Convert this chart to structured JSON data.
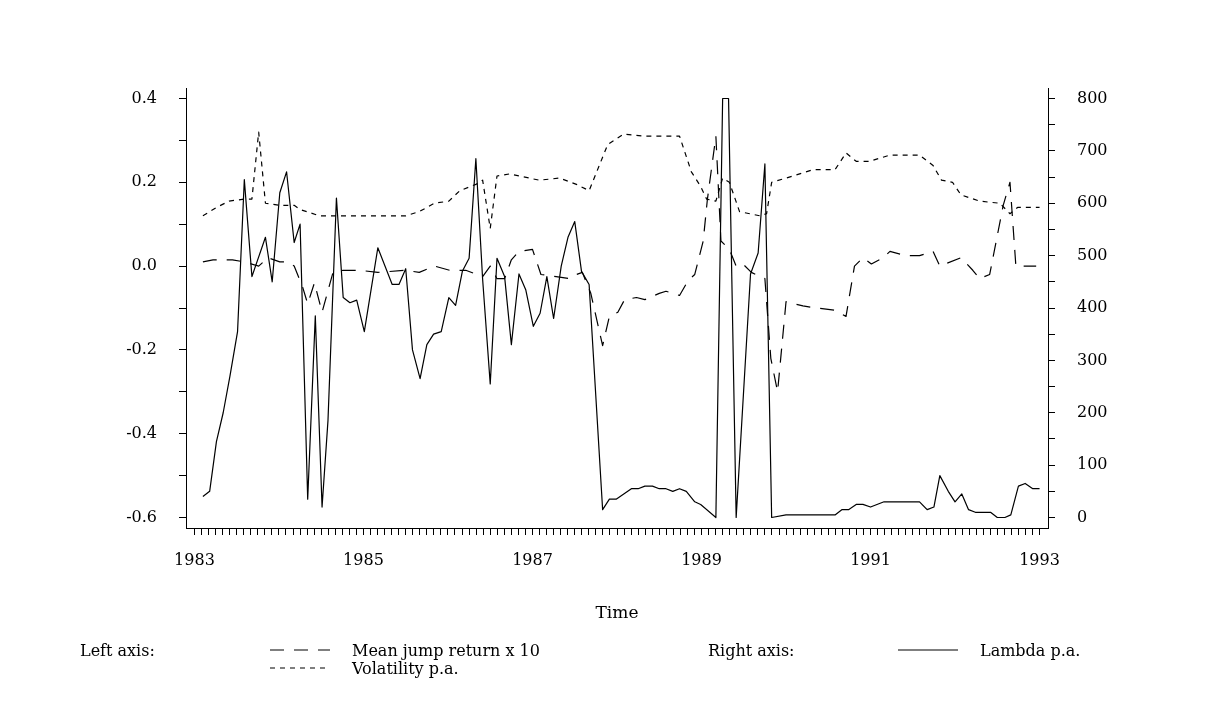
{
  "chart_data": {
    "type": "line",
    "xlabel": "Time",
    "legend": "bottom",
    "annotations": [
      "Left axis:",
      "Right axis:"
    ],
    "xlim": [
      1982.9,
      1993.1
    ],
    "xticks": [
      1983,
      {
        "value": 1983.083,
        "label": null
      },
      {
        "value": 1983.167,
        "label": null
      },
      {
        "value": 1983.25,
        "label": null
      },
      {
        "value": 1983.333,
        "label": null
      },
      {
        "value": 1983.417,
        "label": null
      },
      {
        "value": 1983.5,
        "label": null
      },
      {
        "value": 1983.583,
        "label": null
      },
      {
        "value": 1983.667,
        "label": null
      },
      {
        "value": 1983.75,
        "label": null
      },
      {
        "value": 1983.833,
        "label": null
      },
      {
        "value": 1983.917,
        "label": null
      },
      {
        "value": 1984,
        "label": null
      },
      {
        "value": 1984.083,
        "label": null
      },
      {
        "value": 1984.167,
        "label": null
      },
      {
        "value": 1984.25,
        "label": null
      },
      {
        "value": 1984.333,
        "label": null
      },
      {
        "value": 1984.417,
        "label": null
      },
      {
        "value": 1984.5,
        "label": null
      },
      {
        "value": 1984.583,
        "label": null
      },
      {
        "value": 1984.667,
        "label": null
      },
      {
        "value": 1984.75,
        "label": null
      },
      {
        "value": 1984.833,
        "label": null
      },
      {
        "value": 1984.917,
        "label": null
      },
      1985,
      {
        "value": 1985.083,
        "label": null
      },
      {
        "value": 1985.167,
        "label": null
      },
      {
        "value": 1985.25,
        "label": null
      },
      {
        "value": 1985.333,
        "label": null
      },
      {
        "value": 1985.417,
        "label": null
      },
      {
        "value": 1985.5,
        "label": null
      },
      {
        "value": 1985.583,
        "label": null
      },
      {
        "value": 1985.667,
        "label": null
      },
      {
        "value": 1985.75,
        "label": null
      },
      {
        "value": 1985.833,
        "label": null
      },
      {
        "value": 1985.917,
        "label": null
      },
      {
        "value": 1986,
        "label": null
      },
      {
        "value": 1986.083,
        "label": null
      },
      {
        "value": 1986.167,
        "label": null
      },
      {
        "value": 1986.25,
        "label": null
      },
      {
        "value": 1986.333,
        "label": null
      },
      {
        "value": 1986.417,
        "label": null
      },
      {
        "value": 1986.5,
        "label": null
      },
      {
        "value": 1986.583,
        "label": null
      },
      {
        "value": 1986.667,
        "label": null
      },
      {
        "value": 1986.75,
        "label": null
      },
      {
        "value": 1986.833,
        "label": null
      },
      {
        "value": 1986.917,
        "label": null
      },
      1987,
      {
        "value": 1987.083,
        "label": null
      },
      {
        "value": 1987.167,
        "label": null
      },
      {
        "value": 1987.25,
        "label": null
      },
      {
        "value": 1987.333,
        "label": null
      },
      {
        "value": 1987.417,
        "label": null
      },
      {
        "value": 1987.5,
        "label": null
      },
      {
        "value": 1987.583,
        "label": null
      },
      {
        "value": 1987.667,
        "label": null
      },
      {
        "value": 1987.75,
        "label": null
      },
      {
        "value": 1987.833,
        "label": null
      },
      {
        "value": 1987.917,
        "label": null
      },
      {
        "value": 1988,
        "label": null
      },
      {
        "value": 1988.083,
        "label": null
      },
      {
        "value": 1988.167,
        "label": null
      },
      {
        "value": 1988.25,
        "label": null
      },
      {
        "value": 1988.333,
        "label": null
      },
      {
        "value": 1988.417,
        "label": null
      },
      {
        "value": 1988.5,
        "label": null
      },
      {
        "value": 1988.583,
        "label": null
      },
      {
        "value": 1988.667,
        "label": null
      },
      {
        "value": 1988.75,
        "label": null
      },
      {
        "value": 1988.833,
        "label": null
      },
      {
        "value": 1988.917,
        "label": null
      },
      1989,
      {
        "value": 1989.083,
        "label": null
      },
      {
        "value": 1989.167,
        "label": null
      },
      {
        "value": 1989.25,
        "label": null
      },
      {
        "value": 1989.333,
        "label": null
      },
      {
        "value": 1989.417,
        "label": null
      },
      {
        "value": 1989.5,
        "label": null
      },
      {
        "value": 1989.583,
        "label": null
      },
      {
        "value": 1989.667,
        "label": null
      },
      {
        "value": 1989.75,
        "label": null
      },
      {
        "value": 1989.833,
        "label": null
      },
      {
        "value": 1989.917,
        "label": null
      },
      {
        "value": 1990,
        "label": null
      },
      {
        "value": 1990.083,
        "label": null
      },
      {
        "value": 1990.167,
        "label": null
      },
      {
        "value": 1990.25,
        "label": null
      },
      {
        "value": 1990.333,
        "label": null
      },
      {
        "value": 1990.417,
        "label": null
      },
      {
        "value": 1990.5,
        "label": null
      },
      {
        "value": 1990.583,
        "label": null
      },
      {
        "value": 1990.667,
        "label": null
      },
      {
        "value": 1990.75,
        "label": null
      },
      {
        "value": 1990.833,
        "label": null
      },
      {
        "value": 1990.917,
        "label": null
      },
      1991,
      {
        "value": 1991.083,
        "label": null
      },
      {
        "value": 1991.167,
        "label": null
      },
      {
        "value": 1991.25,
        "label": null
      },
      {
        "value": 1991.333,
        "label": null
      },
      {
        "value": 1991.417,
        "label": null
      },
      {
        "value": 1991.5,
        "label": null
      },
      {
        "value": 1991.583,
        "label": null
      },
      {
        "value": 1991.667,
        "label": null
      },
      {
        "value": 1991.75,
        "label": null
      },
      {
        "value": 1991.833,
        "label": null
      },
      {
        "value": 1991.917,
        "label": null
      },
      {
        "value": 1992,
        "label": null
      },
      {
        "value": 1992.083,
        "label": null
      },
      {
        "value": 1992.167,
        "label": null
      },
      {
        "value": 1992.25,
        "label": null
      },
      {
        "value": 1992.333,
        "label": null
      },
      {
        "value": 1992.417,
        "label": null
      },
      {
        "value": 1992.5,
        "label": null
      },
      {
        "value": 1992.583,
        "label": null
      },
      {
        "value": 1992.667,
        "label": null
      },
      {
        "value": 1992.75,
        "label": null
      },
      {
        "value": 1992.833,
        "label": null
      },
      {
        "value": 1992.917,
        "label": null
      },
      1993
    ],
    "ylim": [
      -0.625,
      0.425
    ],
    "yticks": [
      -0.6,
      {
        "value": -0.5,
        "label": null
      },
      -0.4,
      {
        "value": -0.3,
        "label": null
      },
      -0.2,
      {
        "value": -0.1,
        "label": null
      },
      {
        "value": 0,
        "label": "0.0"
      },
      {
        "value": 0.1,
        "label": null
      },
      0.2,
      {
        "value": 0.3,
        "label": null
      },
      0.4
    ],
    "y2lim": [
      -20,
      820
    ],
    "y2ticks": [
      0,
      {
        "value": 50,
        "label": null
      },
      100,
      {
        "value": 150,
        "label": null
      },
      200,
      {
        "value": 250,
        "label": null
      },
      300,
      {
        "value": 350,
        "label": null
      },
      400,
      {
        "value": 450,
        "label": null
      },
      500,
      {
        "value": 550,
        "label": null
      },
      600,
      {
        "value": 650,
        "label": null
      },
      700,
      {
        "value": 750,
        "label": null
      },
      800
    ],
    "series": [
      {
        "name": "Mean jump return x 10",
        "color": "#000000",
        "line_style": "dashed",
        "x": [
          1983.1,
          1983.22,
          1983.45,
          1983.59,
          1983.76,
          1983.87,
          1984.01,
          1984.1,
          1984.18,
          1984.28,
          1984.34,
          1984.42,
          1984.51,
          1984.64,
          1984.76,
          1984.95,
          1985.17,
          1985.5,
          1985.66,
          1985.84,
          1986.02,
          1986.21,
          1986.41,
          1986.5,
          1986.58,
          1986.67,
          1986.75,
          1986.84,
          1987.0,
          1987.1,
          1987.28,
          1987.44,
          1987.52,
          1987.59,
          1987.69,
          1987.83,
          1987.91,
          1988.01,
          1988.09,
          1988.23,
          1988.33,
          1988.5,
          1988.58,
          1988.74,
          1988.84,
          1988.92,
          1989.02,
          1989.07,
          1989.17,
          1989.23,
          1989.33,
          1989.41,
          1989.49,
          1989.59,
          1989.75,
          1989.82,
          1989.9,
          1990.0,
          1990.2,
          1990.36,
          1990.57,
          1990.71,
          1990.81,
          1990.91,
          1991.01,
          1991.15,
          1991.23,
          1991.42,
          1991.58,
          1991.74,
          1991.82,
          1992.07,
          1992.21,
          1992.29,
          1992.41,
          1992.57,
          1992.65,
          1992.72,
          1992.96
        ],
        "values": [
          0.01,
          0.015,
          0.015,
          0.01,
          0.0,
          0.02,
          0.01,
          0.01,
          0.0,
          -0.05,
          -0.09,
          -0.04,
          -0.11,
          -0.015,
          -0.01,
          -0.01,
          -0.015,
          -0.01,
          -0.015,
          0.0,
          -0.01,
          -0.01,
          -0.025,
          0.0,
          -0.03,
          -0.03,
          0.015,
          0.035,
          0.04,
          -0.02,
          -0.025,
          -0.03,
          -0.02,
          -0.015,
          -0.065,
          -0.19,
          -0.12,
          -0.11,
          -0.08,
          -0.075,
          -0.08,
          -0.065,
          -0.06,
          -0.07,
          -0.035,
          -0.02,
          0.06,
          0.16,
          0.31,
          0.06,
          0.04,
          0.0,
          0.005,
          -0.015,
          -0.03,
          -0.22,
          -0.3,
          -0.085,
          -0.095,
          -0.1,
          -0.105,
          -0.12,
          0.0,
          0.02,
          0.005,
          0.02,
          0.035,
          0.025,
          0.025,
          0.035,
          0.0,
          0.02,
          -0.01,
          -0.03,
          -0.02,
          0.145,
          0.2,
          0.0,
          0.0
        ]
      },
      {
        "name": "Volatility p.a.",
        "color": "#000000",
        "line_style": "dotted",
        "x": [
          1983.1,
          1983.18,
          1983.26,
          1983.41,
          1983.59,
          1983.68,
          1983.76,
          1983.84,
          1984.01,
          1984.18,
          1984.25,
          1984.48,
          1984.68,
          1984.91,
          1985.19,
          1985.5,
          1985.66,
          1985.84,
          1986.01,
          1986.14,
          1986.33,
          1986.41,
          1986.5,
          1986.58,
          1986.73,
          1987.08,
          1987.32,
          1987.52,
          1987.67,
          1987.89,
          1988.08,
          1988.33,
          1988.74,
          1988.88,
          1988.99,
          1989.06,
          1989.17,
          1989.25,
          1989.33,
          1989.45,
          1989.69,
          1989.77,
          1989.83,
          1990.0,
          1990.32,
          1990.58,
          1990.71,
          1990.83,
          1990.99,
          1991.23,
          1991.58,
          1991.74,
          1991.84,
          1991.97,
          1992.07,
          1992.29,
          1992.53,
          1992.65,
          1992.74,
          1992.84,
          1993.0
        ],
        "values": [
          0.12,
          0.13,
          0.14,
          0.155,
          0.16,
          0.16,
          0.32,
          0.15,
          0.145,
          0.145,
          0.135,
          0.12,
          0.12,
          0.12,
          0.12,
          0.12,
          0.13,
          0.15,
          0.155,
          0.18,
          0.195,
          0.205,
          0.09,
          0.215,
          0.22,
          0.205,
          0.21,
          0.195,
          0.18,
          0.29,
          0.315,
          0.31,
          0.31,
          0.225,
          0.19,
          0.16,
          0.155,
          0.21,
          0.2,
          0.13,
          0.12,
          0.125,
          0.2,
          0.21,
          0.23,
          0.23,
          0.27,
          0.25,
          0.25,
          0.265,
          0.265,
          0.24,
          0.205,
          0.2,
          0.17,
          0.155,
          0.15,
          0.125,
          0.14,
          0.14,
          0.14
        ]
      },
      {
        "name": "Lambda p.a.",
        "color": "#000000",
        "line_style": "solid",
        "axis": "y2",
        "x": [
          1983.1,
          1983.18,
          1983.26,
          1983.34,
          1983.42,
          1983.51,
          1983.59,
          1983.68,
          1983.84,
          1983.92,
          1984.01,
          1984.09,
          1984.18,
          1984.25,
          1984.34,
          1984.43,
          1984.51,
          1984.58,
          1984.68,
          1984.76,
          1984.84,
          1984.92,
          1985.01,
          1985.17,
          1985.34,
          1985.42,
          1985.5,
          1985.58,
          1985.67,
          1985.75,
          1985.83,
          1985.92,
          1986.01,
          1986.09,
          1986.17,
          1986.25,
          1986.33,
          1986.41,
          1986.5,
          1986.58,
          1986.67,
          1986.75,
          1986.84,
          1986.92,
          1987.01,
          1987.09,
          1987.17,
          1987.25,
          1987.34,
          1987.42,
          1987.5,
          1987.58,
          1987.67,
          1987.83,
          1987.91,
          1987.99,
          1988.08,
          1988.17,
          1988.25,
          1988.33,
          1988.42,
          1988.5,
          1988.58,
          1988.66,
          1988.74,
          1988.82,
          1988.92,
          1988.99,
          1989.17,
          1989.25,
          1989.32,
          1989.41,
          1989.58,
          1989.67,
          1989.75,
          1989.83,
          1990.0,
          1990.58,
          1990.66,
          1990.74,
          1990.83,
          1990.91,
          1991.0,
          1991.16,
          1991.41,
          1991.58,
          1991.67,
          1991.75,
          1991.82,
          1991.92,
          1992.0,
          1992.08,
          1992.16,
          1992.24,
          1992.33,
          1992.42,
          1992.5,
          1992.59,
          1992.66,
          1992.75,
          1992.83,
          1992.92,
          1993.0
        ],
        "values": [
          40,
          50,
          145,
          200,
          270,
          355,
          645,
          460,
          535,
          450,
          620,
          660,
          525,
          560,
          35,
          385,
          20,
          185,
          610,
          420,
          410,
          415,
          355,
          515,
          445,
          445,
          475,
          320,
          265,
          330,
          350,
          355,
          420,
          405,
          470,
          495,
          685,
          455,
          255,
          495,
          460,
          330,
          465,
          435,
          365,
          390,
          460,
          380,
          480,
          535,
          565,
          470,
          445,
          15,
          35,
          35,
          45,
          55,
          55,
          60,
          60,
          55,
          55,
          50,
          55,
          50,
          30,
          25,
          0,
          800,
          800,
          0,
          465,
          505,
          675,
          0,
          5,
          5,
          15,
          15,
          25,
          25,
          20,
          30,
          30,
          30,
          15,
          20,
          80,
          50,
          30,
          45,
          15,
          10,
          10,
          10,
          0,
          0,
          5,
          60,
          65,
          55,
          55
        ]
      }
    ]
  }
}
